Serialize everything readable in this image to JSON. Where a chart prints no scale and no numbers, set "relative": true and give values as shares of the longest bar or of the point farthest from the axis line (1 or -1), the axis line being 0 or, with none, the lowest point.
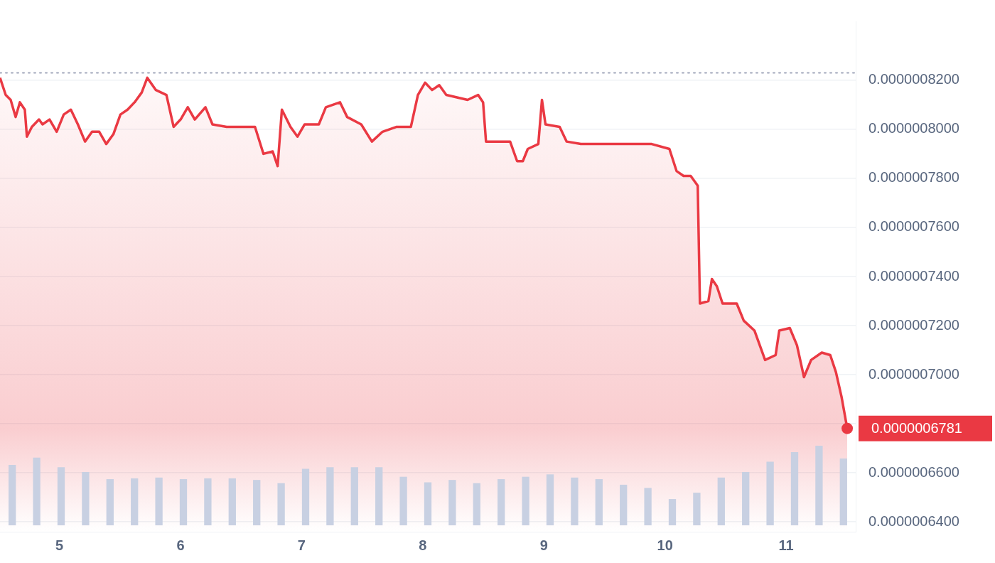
{
  "chart_data": [
    {
      "type": "area",
      "xlim": [
        4.51,
        11.574
      ],
      "xticks": [
        5,
        6,
        7,
        8,
        9,
        10,
        11
      ],
      "ylim": [
        6.36e-07,
        8.44e-07
      ],
      "yticks": [
        {
          "value": 6.4e-07,
          "label": "0.0000006400"
        },
        {
          "value": 6.6e-07,
          "label": "0.0000006600"
        },
        {
          "value": 6.8e-07,
          "label": null
        },
        {
          "value": 7e-07,
          "label": "0.0000007000"
        },
        {
          "value": 7.2e-07,
          "label": "0.0000007200"
        },
        {
          "value": 7.4e-07,
          "label": "0.0000007400"
        },
        {
          "value": 7.6e-07,
          "label": "0.0000007600"
        },
        {
          "value": 7.8e-07,
          "label": "0.0000007800"
        },
        {
          "value": 8e-07,
          "label": "0.0000008000"
        },
        {
          "value": 8.2e-07,
          "label": "0.0000008200"
        }
      ],
      "grid": "y",
      "legend": false,
      "marker": "none",
      "line_style": "solid",
      "ref_lines": [
        {
          "axis": "y",
          "value": 8.23e-07,
          "label": null,
          "color": "#a1a7bb",
          "line_style": "dotted"
        }
      ],
      "annotations": [
        {
          "text": "0.0000006781",
          "x": 11.504,
          "y": 6.781e-07
        }
      ],
      "series": [
        {
          "color": "#ea3943",
          "x": [
            4.51,
            4.557,
            4.598,
            4.639,
            4.674,
            4.715,
            4.732,
            4.773,
            4.832,
            4.861,
            4.919,
            4.978,
            5.036,
            5.095,
            5.153,
            5.212,
            5.27,
            5.329,
            5.387,
            5.446,
            5.504,
            5.563,
            5.621,
            5.68,
            5.726,
            5.797,
            5.884,
            5.943,
            6.001,
            6.06,
            6.118,
            6.206,
            6.264,
            6.381,
            6.498,
            6.615,
            6.685,
            6.761,
            6.802,
            6.837,
            6.908,
            6.966,
            7.025,
            7.142,
            7.2,
            7.317,
            7.376,
            7.492,
            7.58,
            7.668,
            7.785,
            7.902,
            7.96,
            8.019,
            8.077,
            8.136,
            8.194,
            8.37,
            8.457,
            8.498,
            8.522,
            8.604,
            8.721,
            8.779,
            8.826,
            8.867,
            8.954,
            8.984,
            9.013,
            9.13,
            9.188,
            9.305,
            9.481,
            9.656,
            9.89,
            10.036,
            10.095,
            10.153,
            10.212,
            10.27,
            10.288,
            10.358,
            10.387,
            10.428,
            10.475,
            10.592,
            10.65,
            10.738,
            10.826,
            10.913,
            10.943,
            11.03,
            11.089,
            11.147,
            11.206,
            11.294,
            11.364,
            11.411,
            11.457,
            11.504
          ],
          "values": [
            8.21e-07,
            8.14e-07,
            8.12e-07,
            8.05e-07,
            8.11e-07,
            8.08e-07,
            7.97e-07,
            8.01e-07,
            8.04e-07,
            8.02e-07,
            8.04e-07,
            7.99e-07,
            8.06e-07,
            8.08e-07,
            8.02e-07,
            7.95e-07,
            7.99e-07,
            7.99e-07,
            7.94e-07,
            7.98e-07,
            8.06e-07,
            8.08e-07,
            8.11e-07,
            8.15e-07,
            8.21e-07,
            8.16e-07,
            8.14e-07,
            8.01e-07,
            8.04e-07,
            8.09e-07,
            8.04e-07,
            8.09e-07,
            8.02e-07,
            8.01e-07,
            8.01e-07,
            8.01e-07,
            7.9e-07,
            7.91e-07,
            7.85e-07,
            8.08e-07,
            8.01e-07,
            7.97e-07,
            8.02e-07,
            8.02e-07,
            8.09e-07,
            8.11e-07,
            8.05e-07,
            8.02e-07,
            7.95e-07,
            7.99e-07,
            8.01e-07,
            8.01e-07,
            8.14e-07,
            8.19e-07,
            8.16e-07,
            8.18e-07,
            8.14e-07,
            8.12e-07,
            8.14e-07,
            8.11e-07,
            7.95e-07,
            7.95e-07,
            7.95e-07,
            7.87e-07,
            7.87e-07,
            7.92e-07,
            7.94e-07,
            8.12e-07,
            8.02e-07,
            8.01e-07,
            7.95e-07,
            7.94e-07,
            7.94e-07,
            7.94e-07,
            7.94e-07,
            7.92e-07,
            7.83e-07,
            7.81e-07,
            7.81e-07,
            7.77e-07,
            7.29e-07,
            7.3e-07,
            7.39e-07,
            7.36e-07,
            7.29e-07,
            7.29e-07,
            7.22e-07,
            7.18e-07,
            7.06e-07,
            7.08e-07,
            7.18e-07,
            7.19e-07,
            7.12e-07,
            6.99e-07,
            7.06e-07,
            7.09e-07,
            7.08e-07,
            7.01e-07,
            6.91e-07,
            6.781e-07
          ]
        }
      ]
    },
    {
      "type": "bar",
      "relative": true,
      "color": "#c8d0e2",
      "categories": [
        null,
        null,
        null,
        null,
        null,
        null,
        null,
        null,
        null,
        null,
        null,
        null,
        null,
        null,
        null,
        null,
        null,
        null,
        null,
        null,
        null,
        null,
        null,
        null,
        null,
        null,
        null,
        null,
        null,
        null,
        null,
        null,
        null,
        null,
        null
      ],
      "values": [
        0.76,
        0.85,
        0.73,
        0.67,
        0.58,
        0.59,
        0.6,
        0.58,
        0.59,
        0.59,
        0.57,
        0.53,
        0.71,
        0.73,
        0.73,
        0.73,
        0.61,
        0.54,
        0.57,
        0.53,
        0.58,
        0.61,
        0.64,
        0.6,
        0.58,
        0.51,
        0.47,
        0.33,
        0.41,
        0.6,
        0.67,
        0.8,
        0.92,
        1,
        0.84
      ]
    }
  ]
}
